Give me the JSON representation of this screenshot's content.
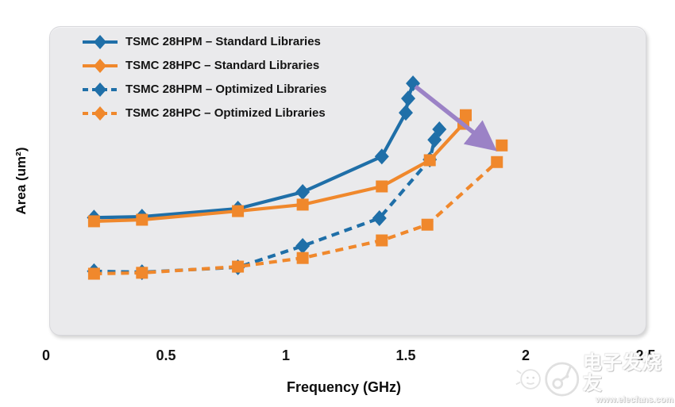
{
  "colors": {
    "blue": "#1f6fa8",
    "orange": "#f0882c",
    "purple": "#9b82c6",
    "panel_bg": "#eaeaec",
    "text": "#111111"
  },
  "axes": {
    "x_label": "Frequency (GHz)",
    "y_label": "Area (um²)",
    "x_ticks": [
      0,
      0.5,
      1,
      1.5,
      2,
      2.5
    ],
    "x_tick_labels": [
      "0",
      "0.5",
      "1",
      "1.5",
      "2",
      "2.5"
    ]
  },
  "watermark": {
    "brand_cn": "电子发烧友",
    "url": "www.elecfans.com"
  },
  "chart_data": {
    "type": "line",
    "title": "",
    "xlabel": "Frequency (GHz)",
    "ylabel": "Area (um²)",
    "xlim": [
      0,
      2.5
    ],
    "ylim_note": "y axis has no numeric tick labels; area given in relative units 0-100",
    "grid": false,
    "legend_position": "top-left inside plot",
    "series": [
      {
        "name": "TSMC 28HPM – Standard Libraries",
        "color": "blue",
        "style": "solid",
        "marker": "diamond",
        "points": [
          [
            0.2,
            38.0
          ],
          [
            0.4,
            38.3
          ],
          [
            0.8,
            40.9
          ],
          [
            1.07,
            46.3
          ],
          [
            1.4,
            57.8
          ],
          [
            1.5,
            72.0
          ],
          [
            1.51,
            76.6
          ],
          [
            1.53,
            81.5
          ]
        ]
      },
      {
        "name": "TSMC 28HPM – Optimized Libraries",
        "color": "blue",
        "style": "dashed",
        "marker": "diamond",
        "points": [
          [
            0.2,
            20.6
          ],
          [
            0.4,
            20.3
          ],
          [
            0.8,
            21.9
          ],
          [
            1.07,
            28.8
          ],
          [
            1.39,
            37.8
          ],
          [
            1.6,
            56.8
          ],
          [
            1.62,
            63.2
          ],
          [
            1.64,
            66.6
          ]
        ]
      },
      {
        "name": "TSMC 28HPC – Standard Libraries",
        "color": "orange",
        "style": "solid",
        "marker": "square",
        "points": [
          [
            0.2,
            36.8
          ],
          [
            0.4,
            37.3
          ],
          [
            0.8,
            40.1
          ],
          [
            1.07,
            42.2
          ],
          [
            1.4,
            48.1
          ],
          [
            1.6,
            56.6
          ],
          [
            1.74,
            68.4
          ],
          [
            1.75,
            71.2
          ]
        ]
      },
      {
        "name": "TSMC 28HPC – Optimized Libraries",
        "color": "orange",
        "style": "dashed",
        "marker": "square",
        "points": [
          [
            0.2,
            19.8
          ],
          [
            0.4,
            20.1
          ],
          [
            0.8,
            22.1
          ],
          [
            1.07,
            24.9
          ],
          [
            1.4,
            30.6
          ],
          [
            1.59,
            35.7
          ],
          [
            1.88,
            56.0
          ]
        ]
      }
    ],
    "extra_point": {
      "note": "isolated 28HPC square at arrow target (higher fmax, lower area)",
      "color": "orange",
      "marker": "square",
      "point": [
        1.9,
        61.4
      ]
    },
    "annotation_arrow": {
      "from": [
        1.54,
        80.5
      ],
      "to": [
        1.865,
        60.8
      ],
      "color": "purple"
    },
    "legend_order": [
      0,
      2,
      1,
      3
    ]
  }
}
